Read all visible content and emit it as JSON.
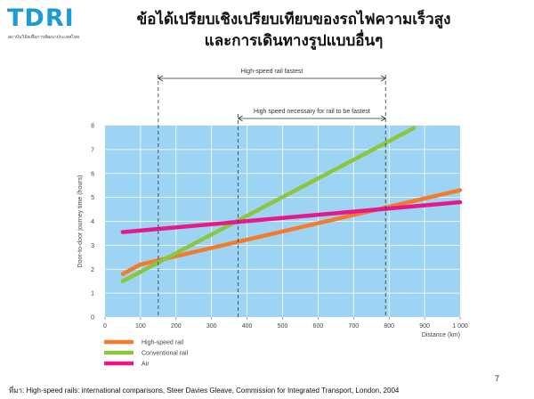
{
  "logo": {
    "text": "TDRI",
    "subtitle": "สถาบันวิจัยเพื่อการพัฒนาประเทศไทย"
  },
  "title_line1": "ข้อได้เปรียบเชิงเปรียบเทียบของรถไฟความเร็วสูง",
  "title_line2": "และการเดินทางรูปแบบอื่นๆ",
  "page_number": "7",
  "source": "ที่มา: High-speed rails: international comparisons, Steer Davies Gleave, Commission for Integrated Transport, London, 2004",
  "colors": {
    "plot_bg": "#9dd3f3",
    "hsr": "#f47b2b",
    "conventional": "#8cc63e",
    "air": "#e6198a"
  },
  "chart_data": {
    "type": "line",
    "title": "",
    "xlabel": "Distance (km)",
    "ylabel": "Door-to-door journey time (hours)",
    "xlim": [
      0,
      1000
    ],
    "ylim": [
      0,
      8
    ],
    "x_ticks": [
      0,
      100,
      200,
      300,
      400,
      500,
      600,
      700,
      800,
      900,
      1000
    ],
    "x_tick_labels": [
      "0",
      "100",
      "200",
      "300",
      "400",
      "500",
      "600",
      "700",
      "800",
      "900",
      "1 000"
    ],
    "y_ticks": [
      0,
      1,
      2,
      3,
      4,
      5,
      6,
      7,
      8
    ],
    "y_tick_labels": [
      "0",
      "1",
      "2",
      "3",
      "4",
      "5",
      "6",
      "7",
      "8"
    ],
    "grid": true,
    "legend_position": "bottom-left",
    "series": [
      {
        "name": "High-speed rail",
        "color": "#f47b2b",
        "points": [
          [
            50,
            1.8
          ],
          [
            100,
            2.2
          ],
          [
            1000,
            5.3
          ]
        ]
      },
      {
        "name": "Conventional rail",
        "color": "#8cc63e",
        "points": [
          [
            50,
            1.5
          ],
          [
            870,
            7.9
          ]
        ]
      },
      {
        "name": "Air",
        "color": "#e6198a",
        "points": [
          [
            50,
            3.55
          ],
          [
            1000,
            4.8
          ]
        ]
      }
    ],
    "annotations": [
      {
        "text": "High-speed rail fastest",
        "x_from": 150,
        "x_to": 790,
        "level": 1
      },
      {
        "text": "High speed necessary for rail to be fastest",
        "x_from": 375,
        "x_to": 790,
        "level": 2
      }
    ]
  }
}
